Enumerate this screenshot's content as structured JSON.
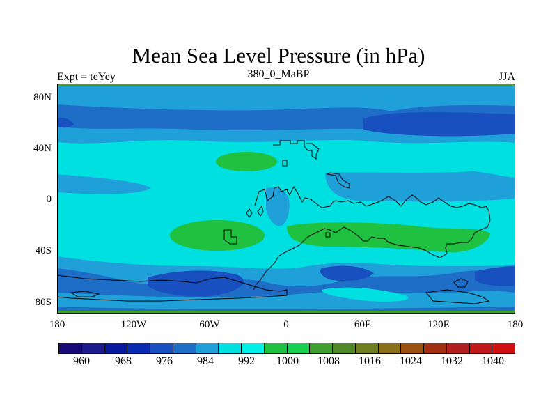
{
  "title": "Mean Sea Level Pressure (in hPa)",
  "left_label": "Expt = teYey",
  "center_label": "380_0_MaBP",
  "right_label": "JJA",
  "y_ticks": [
    "80N",
    "40N",
    "0",
    "40S",
    "80S"
  ],
  "x_ticks": [
    "180",
    "120W",
    "60W",
    "0",
    "60E",
    "120E",
    "180"
  ],
  "colorbar": {
    "labels": [
      "960",
      "968",
      "976",
      "984",
      "992",
      "1000",
      "1008",
      "1016",
      "1024",
      "1032",
      "1040"
    ],
    "colors": [
      "#1a0a78",
      "#1c1a8c",
      "#0a1aa0",
      "#0a2ab4",
      "#1850c0",
      "#1e6ec8",
      "#20a0d8",
      "#00e0e0",
      "#00f0e8",
      "#20c040",
      "#18d050",
      "#40a030",
      "#508828",
      "#708020",
      "#8a7018",
      "#9a5010",
      "#a03010",
      "#b02020",
      "#c01818",
      "#d01010"
    ]
  },
  "map": {
    "lon_range": [
      -180,
      180
    ],
    "lat_range": [
      -90,
      90
    ],
    "background_color": "#00e0e0"
  }
}
